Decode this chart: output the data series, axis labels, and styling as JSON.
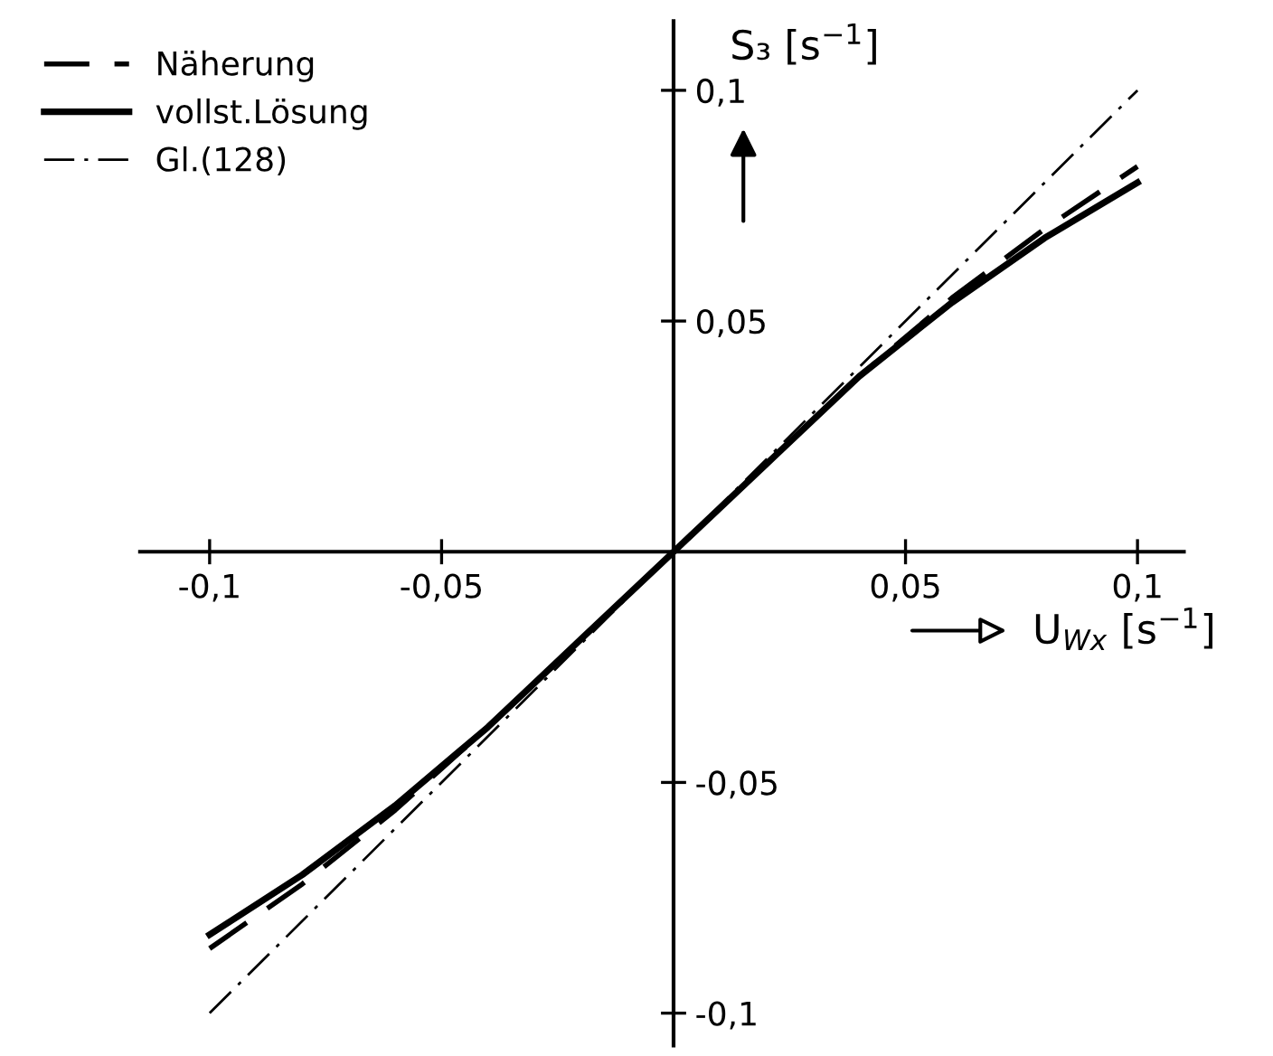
{
  "chart_data": {
    "type": "line",
    "xlabel": "U$_{Wx}$ [s$^{−1}$]",
    "ylabel": "S₃ [s$^{−1}$]",
    "xlim": [
      -0.115,
      0.11
    ],
    "ylim": [
      -0.107,
      0.115
    ],
    "xticks": [
      {
        "value": -0.1,
        "label": "-0,1"
      },
      {
        "value": -0.05,
        "label": "-0,05"
      },
      {
        "value": 0.05,
        "label": "0,05"
      },
      {
        "value": 0.1,
        "label": "0,1"
      }
    ],
    "yticks": [
      {
        "value": -0.1,
        "label": "-0,1"
      },
      {
        "value": -0.05,
        "label": "-0,05"
      },
      {
        "value": 0.05,
        "label": "0,05"
      },
      {
        "value": 0.1,
        "label": "0,1"
      }
    ],
    "grid": false,
    "legend": "top left",
    "marker": "none",
    "x": [
      -0.1,
      -0.08,
      -0.06,
      -0.04,
      -0.02,
      0,
      0.02,
      0.04,
      0.06,
      0.08,
      0.1
    ],
    "series": [
      {
        "name": "Näherung",
        "color": "#000000",
        "line_style": "dashed",
        "values": [
          -0.086,
          -0.072,
          -0.056,
          -0.038,
          -0.019,
          0,
          0.019,
          0.038,
          0.055,
          0.07,
          0.0835
        ]
      },
      {
        "name": "vollst.Lösung",
        "color": "#000000",
        "line_style": "solid",
        "values": [
          -0.083,
          -0.07,
          -0.055,
          -0.038,
          -0.019,
          0,
          0.019,
          0.038,
          0.054,
          0.068,
          0.08
        ]
      },
      {
        "name": "Gl.(128)",
        "color": "#000000",
        "line_style": "dashdot",
        "x": [
          -0.1,
          0.1
        ],
        "values": [
          -0.1,
          0.1
        ]
      }
    ]
  }
}
